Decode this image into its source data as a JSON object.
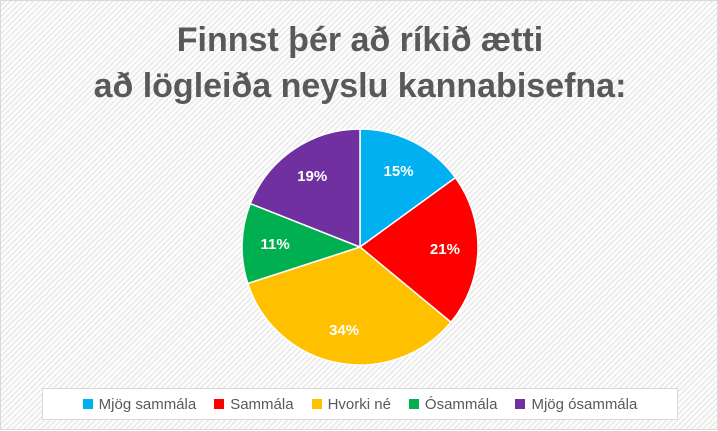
{
  "chart_data": {
    "type": "pie",
    "title_lines": [
      "Finnst þér að ríkið ætti",
      "að lögleiða neyslu kannabisefna:"
    ],
    "slices": [
      {
        "label": "Mjög sammála",
        "value": 15,
        "value_label": "15%",
        "color": "#00b0f0"
      },
      {
        "label": "Sammála",
        "value": 21,
        "value_label": "21%",
        "color": "#ff0000"
      },
      {
        "label": "Hvorki né",
        "value": 34,
        "value_label": "34%",
        "color": "#ffc000"
      },
      {
        "label": "Ósammála",
        "value": 11,
        "value_label": "11%",
        "color": "#00b050"
      },
      {
        "label": "Mjög ósammála",
        "value": 19,
        "value_label": "19%",
        "color": "#7030a0"
      }
    ],
    "legend_position": "bottom",
    "start": "top",
    "direction": "clockwise"
  }
}
